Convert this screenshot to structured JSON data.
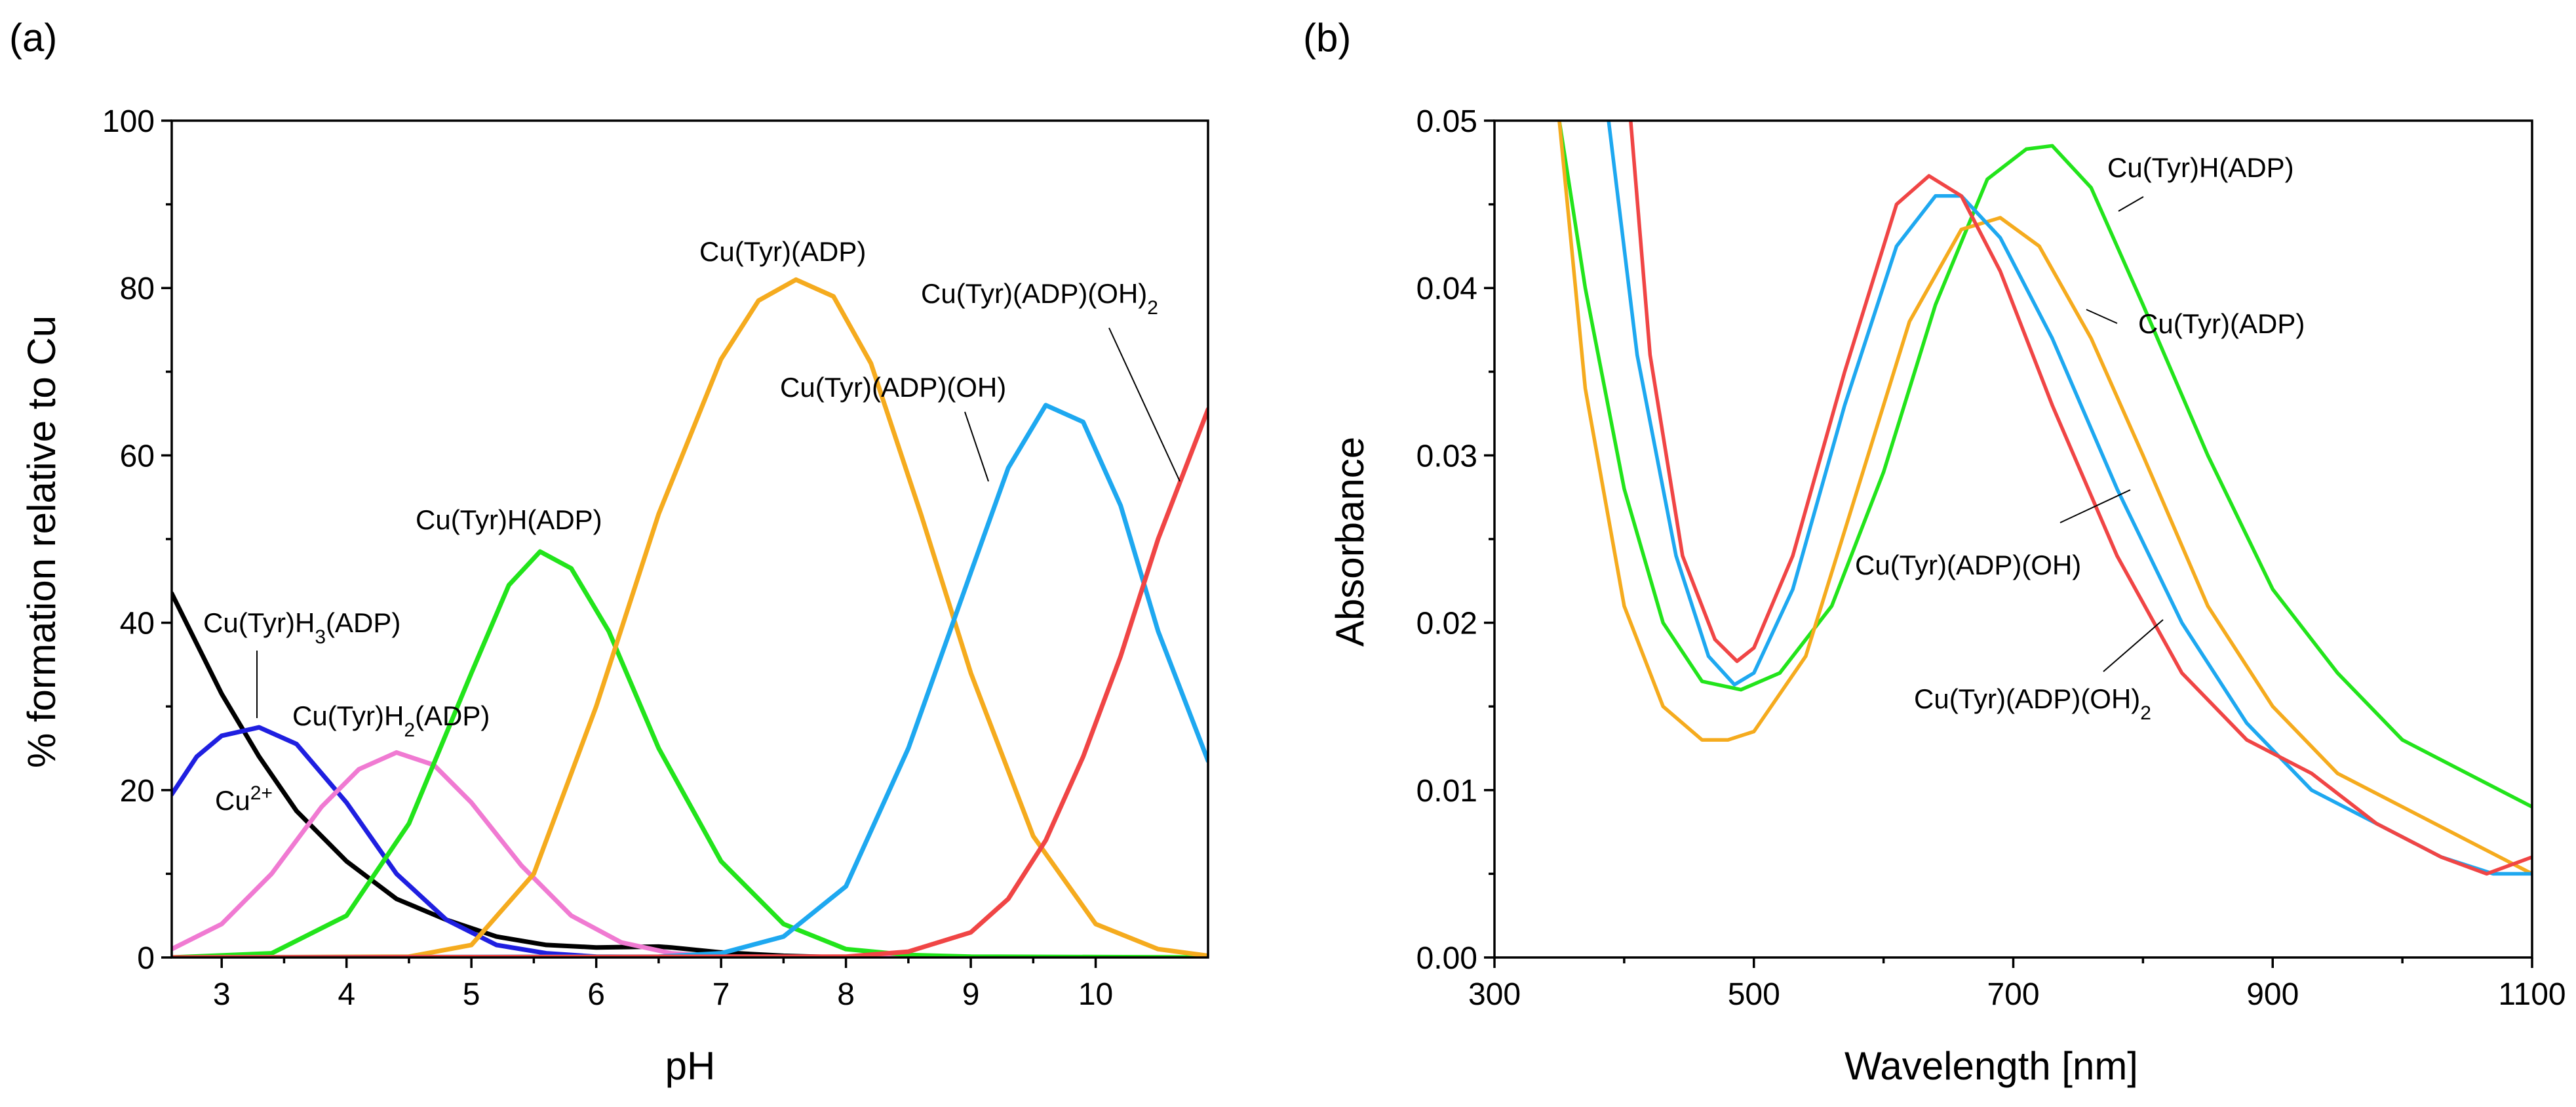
{
  "chart_data": [
    {
      "panel": "(a)",
      "type": "line",
      "title": "",
      "xlabel": "pH",
      "ylabel": "% formation relative to Cu",
      "xlim": [
        2.6,
        10.9
      ],
      "ylim": [
        0,
        100
      ],
      "xticks": [
        3,
        4,
        5,
        6,
        7,
        8,
        9,
        10
      ],
      "yticks": [
        0,
        20,
        40,
        60,
        80,
        100
      ],
      "series": [
        {
          "name": "Cu2+",
          "label_main": "Cu",
          "label_sup": "2+",
          "color": "#000000",
          "x": [
            2.6,
            2.8,
            3.0,
            3.3,
            3.6,
            4.0,
            4.4,
            4.8,
            5.2,
            5.6,
            6.0,
            6.5,
            6.6,
            7.0,
            7.5,
            8.0,
            9.0,
            10.0,
            10.9
          ],
          "y": [
            43.5,
            37.5,
            31.5,
            24.0,
            17.5,
            11.5,
            7.0,
            4.5,
            2.5,
            1.5,
            1.2,
            1.3,
            1.2,
            0.6,
            0.2,
            0.0,
            0.0,
            0.0,
            0.0
          ]
        },
        {
          "name": "Cu(Tyr)H3(ADP)",
          "label_main": "Cu(Tyr)H",
          "label_sub": "3",
          "label_tail": "(ADP)",
          "color": "#1f1fe0",
          "x": [
            2.6,
            2.8,
            3.0,
            3.3,
            3.6,
            4.0,
            4.4,
            4.8,
            5.2,
            5.6,
            6.0,
            7.0,
            8.0,
            10.9
          ],
          "y": [
            19.5,
            24.0,
            26.5,
            27.5,
            25.5,
            18.5,
            10.0,
            4.5,
            1.5,
            0.5,
            0.1,
            0.0,
            0.0,
            0.0
          ]
        },
        {
          "name": "Cu(Tyr)H2(ADP)",
          "label_main": "Cu(Tyr)H",
          "label_sub": "2",
          "label_tail": "(ADP)",
          "color": "#f07ad2",
          "x": [
            2.6,
            3.0,
            3.4,
            3.8,
            4.1,
            4.4,
            4.7,
            5.0,
            5.4,
            5.8,
            6.2,
            6.6,
            7.0,
            10.9
          ],
          "y": [
            1.0,
            4.0,
            10.0,
            18.0,
            22.5,
            24.5,
            23.0,
            18.5,
            11.0,
            5.0,
            1.8,
            0.5,
            0.1,
            0.0
          ]
        },
        {
          "name": "Cu(Tyr)H(ADP)",
          "label_main": "Cu(Tyr)H(ADP)",
          "color": "#22e41b",
          "x": [
            2.6,
            3.4,
            4.0,
            4.5,
            5.0,
            5.3,
            5.55,
            5.8,
            6.1,
            6.5,
            7.0,
            7.5,
            8.0,
            8.5,
            9.0,
            10.9
          ],
          "y": [
            0.0,
            0.5,
            5.0,
            16.0,
            34.0,
            44.5,
            48.5,
            46.5,
            39.0,
            25.0,
            11.5,
            4.0,
            1.0,
            0.3,
            0.1,
            0.0
          ]
        },
        {
          "name": "Cu(Tyr)(ADP)",
          "label_main": "Cu(Tyr)(ADP)",
          "color": "#f5ab1e",
          "x": [
            2.6,
            4.5,
            5.0,
            5.5,
            6.0,
            6.5,
            7.0,
            7.3,
            7.6,
            7.9,
            8.2,
            8.6,
            9.0,
            9.5,
            10.0,
            10.5,
            10.9
          ],
          "y": [
            0.0,
            0.1,
            1.5,
            10.0,
            30.0,
            53.0,
            71.5,
            78.5,
            81.0,
            79.0,
            71.0,
            53.0,
            34.0,
            14.5,
            4.0,
            1.0,
            0.2
          ]
        },
        {
          "name": "Cu(Tyr)(ADP)(OH)",
          "label_main": "Cu(Tyr)(ADP)(OH)",
          "color": "#1ea8f0",
          "x": [
            2.6,
            6.5,
            7.0,
            7.5,
            8.0,
            8.5,
            9.0,
            9.3,
            9.6,
            9.9,
            10.2,
            10.5,
            10.9
          ],
          "y": [
            0.0,
            0.1,
            0.5,
            2.5,
            8.5,
            25.0,
            46.0,
            58.5,
            66.0,
            64.0,
            54.0,
            39.0,
            23.5
          ]
        },
        {
          "name": "Cu(Tyr)(ADP)(OH)2",
          "label_main": "Cu(Tyr)(ADP)(OH)",
          "label_sub": "2",
          "color": "#f04545",
          "x": [
            2.6,
            8.0,
            8.5,
            9.0,
            9.3,
            9.6,
            9.9,
            10.2,
            10.5,
            10.9
          ],
          "y": [
            0.0,
            0.1,
            0.7,
            3.0,
            7.0,
            14.0,
            24.0,
            36.0,
            50.0,
            65.5
          ]
        }
      ]
    },
    {
      "panel": "(b)",
      "type": "line",
      "title": "",
      "xlabel": "Wavelength [nm]",
      "ylabel": "Absorbance",
      "xlim": [
        300,
        1100
      ],
      "ylim": [
        0.0,
        0.05
      ],
      "xticks": [
        300,
        500,
        700,
        900,
        1100
      ],
      "yticks": [
        0.0,
        0.01,
        0.02,
        0.03,
        0.04,
        0.05
      ],
      "ytick_labels": [
        "0.00",
        "0.01",
        "0.02",
        "0.03",
        "0.04",
        "0.05"
      ],
      "series": [
        {
          "name": "Cu(Tyr)H(ADP)",
          "label_main": "Cu(Tyr)H(ADP)",
          "color": "#22e41b",
          "x": [
            350,
            370,
            400,
            430,
            460,
            490,
            520,
            560,
            600,
            640,
            680,
            710,
            730,
            760,
            800,
            850,
            900,
            950,
            1000,
            1050,
            1100
          ],
          "y": [
            0.05,
            0.04,
            0.028,
            0.02,
            0.0165,
            0.016,
            0.017,
            0.021,
            0.029,
            0.039,
            0.0465,
            0.0483,
            0.0485,
            0.046,
            0.039,
            0.03,
            0.022,
            0.017,
            0.013,
            0.011,
            0.009
          ]
        },
        {
          "name": "Cu(Tyr)(ADP)",
          "label_main": "Cu(Tyr)(ADP)",
          "color": "#f5ab1e",
          "x": [
            350,
            370,
            400,
            430,
            460,
            480,
            500,
            540,
            580,
            620,
            660,
            690,
            720,
            760,
            800,
            850,
            900,
            950,
            1000,
            1050,
            1100
          ],
          "y": [
            0.05,
            0.034,
            0.021,
            0.015,
            0.013,
            0.013,
            0.0135,
            0.018,
            0.028,
            0.038,
            0.0435,
            0.0442,
            0.0425,
            0.037,
            0.03,
            0.021,
            0.015,
            0.011,
            0.009,
            0.007,
            0.005
          ]
        },
        {
          "name": "Cu(Tyr)(ADP)(OH)",
          "label_main": "Cu(Tyr)(ADP)(OH)",
          "color": "#1ea8f0",
          "x": [
            388,
            410,
            440,
            465,
            485,
            500,
            530,
            570,
            610,
            640,
            660,
            690,
            730,
            780,
            830,
            880,
            930,
            980,
            1030,
            1070,
            1100
          ],
          "y": [
            0.05,
            0.036,
            0.024,
            0.018,
            0.0163,
            0.017,
            0.022,
            0.033,
            0.0425,
            0.0455,
            0.0455,
            0.043,
            0.037,
            0.028,
            0.02,
            0.014,
            0.01,
            0.008,
            0.006,
            0.005,
            0.005
          ]
        },
        {
          "name": "Cu(Tyr)(ADP)(OH)2",
          "label_main": "Cu(Tyr)(ADP)(OH)",
          "label_sub": "2",
          "color": "#f04545",
          "x": [
            405,
            420,
            445,
            470,
            487,
            500,
            530,
            570,
            610,
            635,
            660,
            690,
            730,
            780,
            830,
            880,
            930,
            980,
            1030,
            1065,
            1100
          ],
          "y": [
            0.05,
            0.036,
            0.024,
            0.019,
            0.0177,
            0.0185,
            0.024,
            0.035,
            0.045,
            0.0467,
            0.0455,
            0.041,
            0.033,
            0.024,
            0.017,
            0.013,
            0.011,
            0.008,
            0.006,
            0.005,
            0.006
          ]
        }
      ]
    }
  ]
}
